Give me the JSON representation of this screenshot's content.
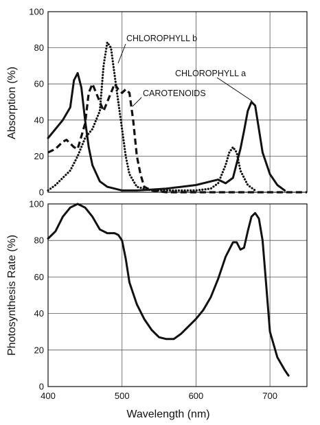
{
  "chart_data": [
    {
      "type": "line",
      "title": "",
      "xlabel": "",
      "ylabel": "Absorption (%)",
      "xlim": [
        400,
        750
      ],
      "ylim": [
        0,
        100
      ],
      "x_ticks": [
        400,
        500,
        600,
        700
      ],
      "y_ticks": [
        0,
        20,
        40,
        60,
        80,
        100
      ],
      "grid": true,
      "series": [
        {
          "name": "CHLOROPHYLL a",
          "style": "solid",
          "points": [
            [
              400,
              30
            ],
            [
              410,
              35
            ],
            [
              420,
              40
            ],
            [
              430,
              47
            ],
            [
              435,
              62
            ],
            [
              440,
              66
            ],
            [
              445,
              58
            ],
            [
              450,
              40
            ],
            [
              455,
              25
            ],
            [
              460,
              15
            ],
            [
              470,
              6
            ],
            [
              480,
              3
            ],
            [
              490,
              2
            ],
            [
              500,
              1
            ],
            [
              520,
              1
            ],
            [
              540,
              1.5
            ],
            [
              560,
              2
            ],
            [
              580,
              3
            ],
            [
              600,
              4
            ],
            [
              620,
              6
            ],
            [
              630,
              7
            ],
            [
              640,
              5
            ],
            [
              650,
              8
            ],
            [
              655,
              16
            ],
            [
              660,
              24
            ],
            [
              665,
              34
            ],
            [
              670,
              45
            ],
            [
              675,
              50
            ],
            [
              680,
              48
            ],
            [
              685,
              35
            ],
            [
              690,
              22
            ],
            [
              700,
              10
            ],
            [
              710,
              4
            ],
            [
              720,
              1
            ]
          ]
        },
        {
          "name": "CHLOROPHYLL b",
          "style": "dotted",
          "points": [
            [
              400,
              1
            ],
            [
              410,
              4
            ],
            [
              420,
              8
            ],
            [
              430,
              12
            ],
            [
              440,
              20
            ],
            [
              450,
              30
            ],
            [
              460,
              35
            ],
            [
              470,
              45
            ],
            [
              475,
              70
            ],
            [
              480,
              83
            ],
            [
              485,
              80
            ],
            [
              490,
              65
            ],
            [
              495,
              50
            ],
            [
              500,
              35
            ],
            [
              505,
              20
            ],
            [
              510,
              10
            ],
            [
              520,
              3
            ],
            [
              540,
              1
            ],
            [
              560,
              1
            ],
            [
              600,
              1
            ],
            [
              620,
              2
            ],
            [
              630,
              5
            ],
            [
              640,
              15
            ],
            [
              645,
              22
            ],
            [
              650,
              25
            ],
            [
              655,
              22
            ],
            [
              660,
              12
            ],
            [
              670,
              4
            ],
            [
              680,
              1
            ]
          ]
        },
        {
          "name": "CAROTENOIDS",
          "style": "dashed",
          "points": [
            [
              400,
              22
            ],
            [
              410,
              24
            ],
            [
              420,
              28
            ],
            [
              425,
              29
            ],
            [
              430,
              27
            ],
            [
              435,
              25
            ],
            [
              440,
              24
            ],
            [
              450,
              38
            ],
            [
              455,
              55
            ],
            [
              460,
              60
            ],
            [
              465,
              55
            ],
            [
              470,
              50
            ],
            [
              475,
              45
            ],
            [
              480,
              50
            ],
            [
              485,
              55
            ],
            [
              490,
              60
            ],
            [
              495,
              57
            ],
            [
              500,
              55
            ],
            [
              505,
              57
            ],
            [
              510,
              55
            ],
            [
              515,
              40
            ],
            [
              520,
              20
            ],
            [
              525,
              10
            ],
            [
              530,
              3
            ],
            [
              540,
              1
            ],
            [
              560,
              0
            ],
            [
              600,
              0
            ],
            [
              750,
              0
            ]
          ]
        }
      ],
      "annotations": [
        {
          "text": "CHLOROPHYLL b",
          "series": "CHLOROPHYLL b"
        },
        {
          "text": "CHLOROPHYLL a",
          "series": "CHLOROPHYLL a"
        },
        {
          "text": "CAROTENOIDS",
          "series": "CAROTENOIDS"
        }
      ]
    },
    {
      "type": "line",
      "title": "",
      "xlabel": "Wavelength (nm)",
      "ylabel": "Photosynthesis Rate (%)",
      "xlim": [
        400,
        750
      ],
      "ylim": [
        0,
        100
      ],
      "x_ticks": [
        400,
        500,
        600,
        700
      ],
      "y_ticks": [
        0,
        20,
        40,
        60,
        80,
        100
      ],
      "grid": true,
      "series": [
        {
          "name": "",
          "style": "solid",
          "points": [
            [
              400,
              81
            ],
            [
              410,
              85
            ],
            [
              420,
              93
            ],
            [
              430,
              98
            ],
            [
              440,
              100
            ],
            [
              450,
              98
            ],
            [
              460,
              93
            ],
            [
              470,
              86
            ],
            [
              480,
              84
            ],
            [
              490,
              84
            ],
            [
              495,
              83
            ],
            [
              500,
              80
            ],
            [
              505,
              70
            ],
            [
              510,
              57
            ],
            [
              520,
              45
            ],
            [
              530,
              37
            ],
            [
              540,
              31
            ],
            [
              550,
              27
            ],
            [
              560,
              26
            ],
            [
              570,
              26
            ],
            [
              580,
              29
            ],
            [
              590,
              33
            ],
            [
              600,
              37
            ],
            [
              610,
              42
            ],
            [
              620,
              49
            ],
            [
              630,
              59
            ],
            [
              640,
              71
            ],
            [
              650,
              79
            ],
            [
              655,
              79
            ],
            [
              660,
              75
            ],
            [
              665,
              76
            ],
            [
              670,
              85
            ],
            [
              675,
              93
            ],
            [
              680,
              95
            ],
            [
              685,
              92
            ],
            [
              690,
              80
            ],
            [
              695,
              55
            ],
            [
              700,
              30
            ],
            [
              710,
              16
            ],
            [
              720,
              9
            ],
            [
              725,
              6
            ]
          ]
        }
      ]
    }
  ]
}
